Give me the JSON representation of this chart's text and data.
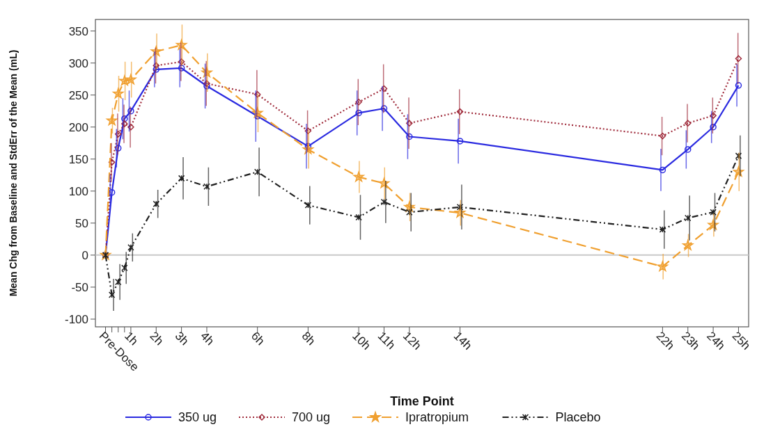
{
  "chart_data": {
    "type": "line",
    "xlabel": "Time Point",
    "ylabel": "Mean Chg from Baseline and StdErr of the Mean (mL)",
    "x": [
      0,
      0.25,
      0.5,
      0.75,
      1,
      2,
      3,
      4,
      6,
      8,
      10,
      11,
      12,
      14,
      22,
      23,
      24,
      25
    ],
    "xlim": [
      -0.4,
      25.4
    ],
    "xticks": [
      {
        "value": 0,
        "label": "Pre-Dose"
      },
      {
        "value": 0.25,
        "label": null
      },
      {
        "value": 0.5,
        "label": null
      },
      {
        "value": 0.75,
        "label": null
      },
      {
        "value": 1,
        "label": "1h"
      },
      {
        "value": 2,
        "label": "2h"
      },
      {
        "value": 3,
        "label": "3h"
      },
      {
        "value": 4,
        "label": "4h"
      },
      {
        "value": 6,
        "label": "6h"
      },
      {
        "value": 8,
        "label": "8h"
      },
      {
        "value": 10,
        "label": "10h"
      },
      {
        "value": 11,
        "label": "11h"
      },
      {
        "value": 12,
        "label": "12h"
      },
      {
        "value": 14,
        "label": "14h"
      },
      {
        "value": 22,
        "label": "22h"
      },
      {
        "value": 23,
        "label": "23h"
      },
      {
        "value": 24,
        "label": "24h"
      },
      {
        "value": 25,
        "label": "25h"
      }
    ],
    "ylim": [
      -112,
      368
    ],
    "yticks": [
      -100,
      -50,
      0,
      50,
      100,
      150,
      200,
      250,
      300,
      350
    ],
    "grid": false,
    "legend": "bottom",
    "ref_lines": [
      {
        "axis": "y",
        "value": 0,
        "color": "#c8c8c8"
      }
    ],
    "series": [
      {
        "name": "350 ug",
        "color": "#2a2ae0",
        "marker": "circle",
        "line_style": "solid",
        "values": [
          0,
          98,
          167,
          213,
          225,
          290,
          292,
          264,
          217,
          170,
          222,
          229,
          185,
          178,
          133,
          165,
          200,
          265
        ],
        "errors": [
          null,
          28,
          30,
          32,
          32,
          28,
          30,
          35,
          40,
          35,
          35,
          35,
          35,
          35,
          33,
          30,
          25,
          33
        ]
      },
      {
        "name": "700 ug",
        "color": "#a02c3c",
        "marker": "diamond",
        "line_style": "dotted",
        "values": [
          0,
          145,
          189,
          205,
          200,
          296,
          302,
          268,
          251,
          194,
          239,
          260,
          206,
          224,
          186,
          206,
          218,
          307
        ],
        "errors": [
          null,
          30,
          32,
          30,
          32,
          28,
          30,
          35,
          38,
          32,
          36,
          38,
          40,
          35,
          30,
          30,
          28,
          40
        ]
      },
      {
        "name": "Ipratropium",
        "color": "#f0a030",
        "marker": "star",
        "line_style": "dashed",
        "values": [
          0,
          210,
          252,
          272,
          274,
          318,
          328,
          285,
          222,
          165,
          122,
          112,
          75,
          66,
          -18,
          15,
          47,
          130
        ],
        "errors": [
          null,
          20,
          28,
          30,
          28,
          28,
          32,
          30,
          30,
          30,
          25,
          25,
          22,
          20,
          20,
          18,
          18,
          30
        ]
      },
      {
        "name": "Placebo",
        "color": "#202020",
        "marker": "cross",
        "line_style": "dashdot",
        "values": [
          0,
          -62,
          -42,
          -20,
          12,
          80,
          120,
          107,
          130,
          78,
          59,
          83,
          67,
          75,
          40,
          58,
          67,
          155
        ],
        "errors": [
          null,
          25,
          28,
          25,
          22,
          22,
          33,
          30,
          38,
          30,
          35,
          33,
          30,
          35,
          30,
          35,
          30,
          32
        ]
      }
    ]
  }
}
